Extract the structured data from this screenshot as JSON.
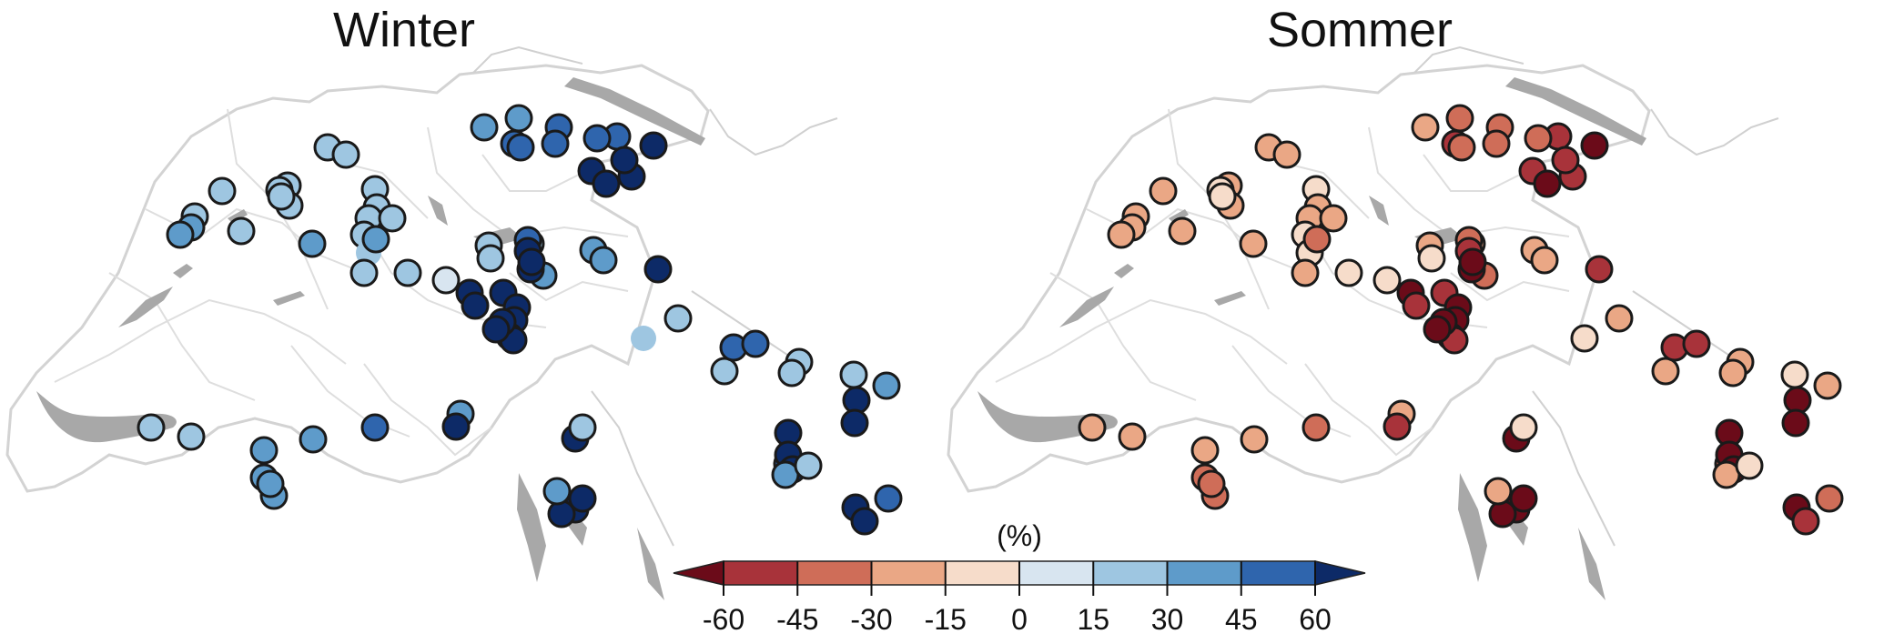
{
  "panels": [
    {
      "title": "Winter",
      "sign": 1
    },
    {
      "title": "Sommer",
      "sign": -1
    }
  ],
  "stations": [
    [
      3,
      0
    ],
    [
      4,
      0
    ],
    [
      5,
      1
    ],
    [
      5,
      3
    ],
    [
      5,
      1
    ],
    [
      6,
      2
    ],
    [
      6,
      3
    ],
    [
      6,
      2
    ],
    [
      7,
      3
    ],
    [
      7,
      2
    ],
    [
      7,
      3
    ],
    [
      7,
      2
    ],
    [
      7,
      2
    ],
    [
      2,
      1
    ],
    [
      2,
      0
    ],
    [
      2,
      1
    ],
    [
      1,
      1
    ],
    [
      2,
      2
    ],
    [
      1,
      2
    ],
    [
      2,
      1
    ],
    [
      2,
      1
    ],
    [
      3,
      2
    ],
    [
      3,
      2
    ],
    [
      2,
      1
    ],
    [
      1,
      1
    ],
    [
      2,
      1
    ],
    [
      2,
      1
    ],
    [
      1,
      1
    ],
    [
      3,
      2
    ],
    [
      1,
      0
    ],
    [
      2,
      2
    ],
    [
      3,
      3
    ],
    [
      2,
      1
    ],
    [
      1,
      1
    ],
    [
      0,
      2
    ],
    [
      2,
      2
    ],
    [
      1,
      1
    ],
    [
      2,
      2
    ],
    [
      3,
      2
    ],
    [
      4,
      2
    ],
    [
      6,
      2
    ],
    [
      7,
      3
    ],
    [
      7,
      2
    ],
    [
      7,
      2
    ],
    [
      8,
      3
    ],
    [
      8,
      3
    ],
    [
      8,
      3
    ],
    [
      8,
      2
    ],
    [
      8,
      3
    ],
    [
      8,
      3
    ],
    [
      7,
      2
    ],
    [
      8,
      4
    ],
    [
      8,
      3
    ],
    [
      3,
      1
    ],
    [
      8,
      2
    ],
    [
      2,
      2
    ],
    [
      1,
      0
    ],
    [
      2,
      2
    ],
    [
      6,
      3
    ],
    [
      6,
      3
    ],
    [
      2,
      1
    ],
    [
      2,
      2
    ],
    [
      1,
      1
    ],
    [
      3,
      2
    ],
    [
      7,
      3
    ],
    [
      7,
      3
    ],
    [
      8,
      4
    ],
    [
      6,
      2
    ],
    [
      8,
      3
    ],
    [
      8,
      3
    ],
    [
      3,
      2
    ],
    [
      1,
      1
    ],
    [
      6,
      2
    ],
    [
      7,
      3
    ],
    [
      8,
      2
    ],
    [
      7,
      3
    ],
    [
      8,
      3
    ],
    [
      8,
      3
    ],
    [
      8,
      3
    ],
    [
      3,
      2
    ],
    [
      1,
      2
    ],
    [
      3,
      2
    ],
    [
      8,
      2
    ],
    [
      5,
      2
    ],
    [
      3,
      2
    ],
    [
      4,
      2
    ],
    [
      3,
      2
    ],
    [
      3,
      3
    ],
    [
      3,
      3
    ],
    [
      2,
      2
    ],
    [
      2,
      2
    ]
  ],
  "colorbar": {
    "unit_label": "(%)",
    "ticks": [
      "-60",
      "-45",
      "-30",
      "-15",
      "0",
      "15",
      "30",
      "45",
      "60"
    ],
    "colors": [
      "#6b0b19",
      "#a8333a",
      "#cf6d58",
      "#eaa785",
      "#f6dcca",
      "#d8e5f0",
      "#9ec6e1",
      "#5e9bca",
      "#2f65ad",
      "#0d2a67"
    ]
  }
}
